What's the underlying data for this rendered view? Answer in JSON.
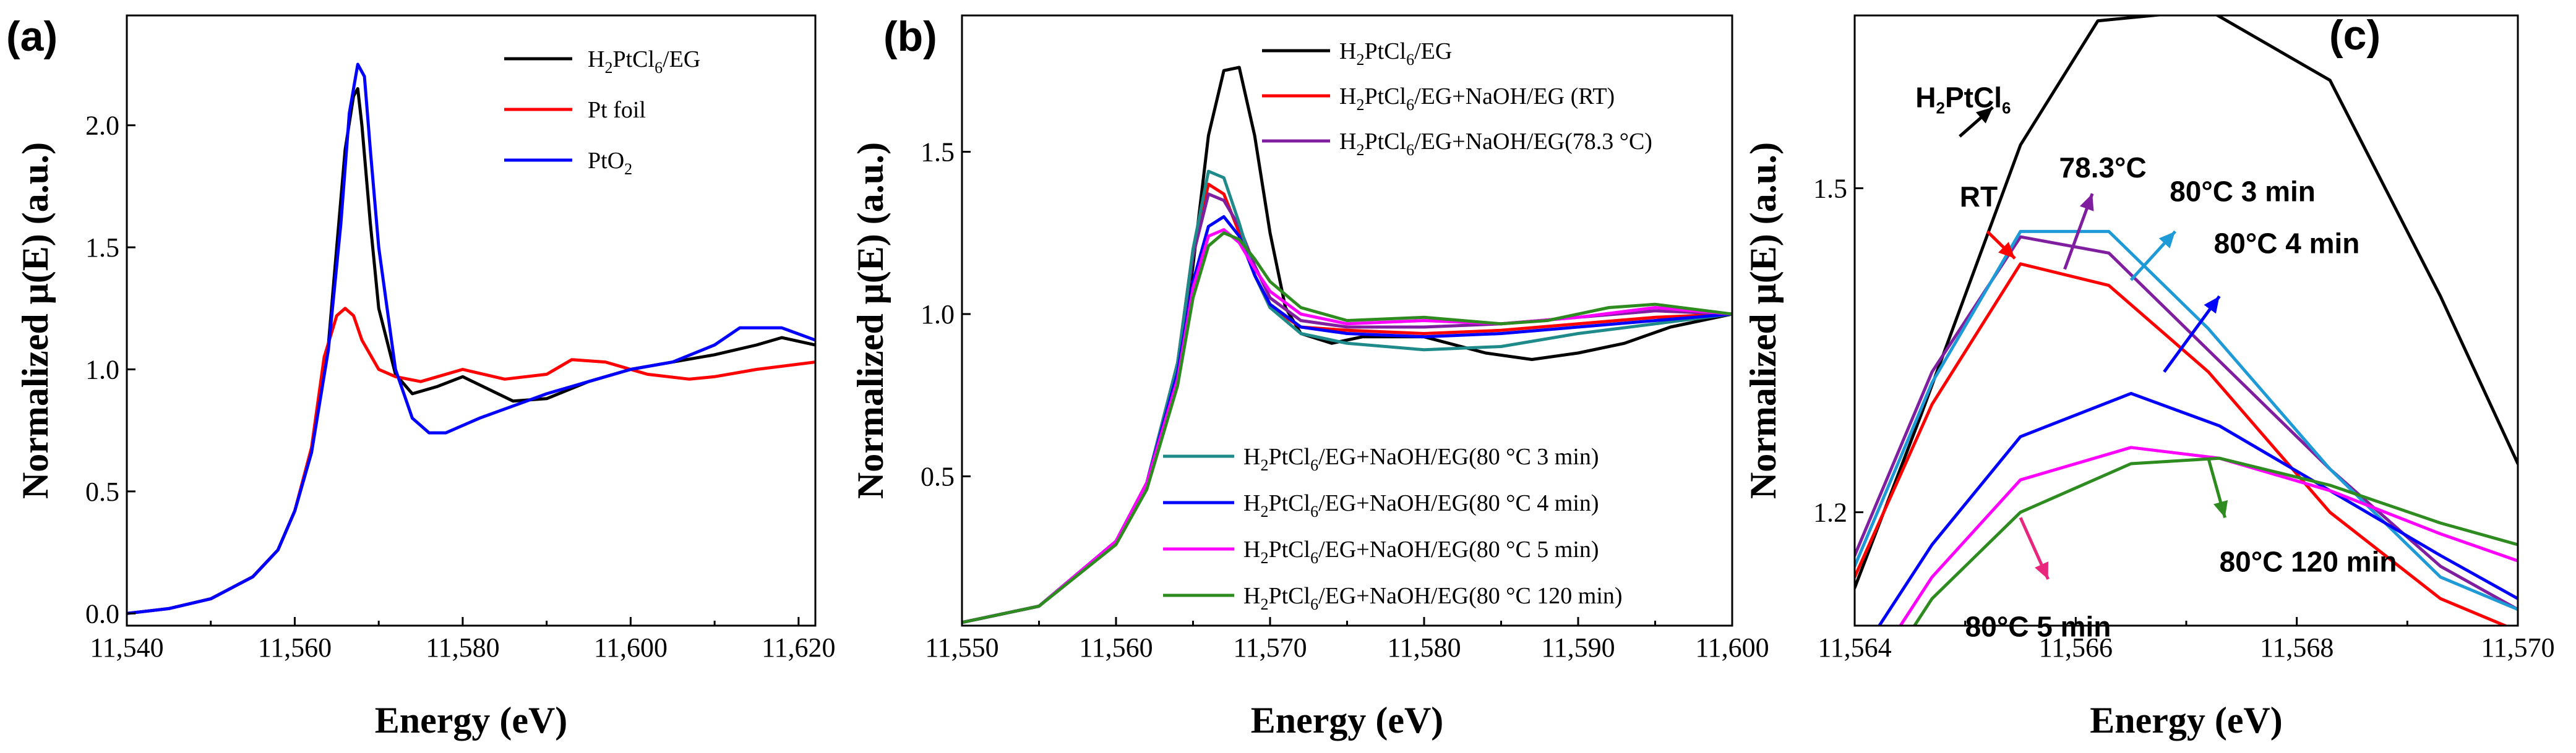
{
  "chart_data": [
    {
      "panel": "(a)",
      "type": "line",
      "title": "",
      "xlabel": "Energy (eV)",
      "ylabel": "Normalized μ(E) (a.u.)",
      "xlim": [
        11540,
        11622
      ],
      "ylim": [
        -0.05,
        2.45
      ],
      "xticks": [
        11540,
        11560,
        11580,
        11600,
        11620
      ],
      "xtick_labels": [
        "11,540",
        "11,560",
        "11,580",
        "11,600",
        "11,620"
      ],
      "yticks": [
        0.0,
        0.5,
        1.0,
        1.5,
        2.0
      ],
      "ytick_labels": [
        "0.0",
        "0.5",
        "1.0",
        "1.5",
        "2.0"
      ],
      "legend_position": "top-right",
      "series": [
        {
          "name": "H2PtCl6/EG",
          "legend_main": "H",
          "legend_parts": [
            "H",
            "2",
            "PtCl",
            "6",
            "/EG"
          ],
          "color": "#000000",
          "x": [
            11540,
            11545,
            11550,
            11555,
            11558,
            11560,
            11562,
            11564,
            11565,
            11566,
            11567,
            11567.5,
            11568,
            11569,
            11570,
            11572,
            11574,
            11577,
            11580,
            11583,
            11586,
            11590,
            11595,
            11600,
            11605,
            11610,
            11615,
            11618,
            11622
          ],
          "y": [
            0.0,
            0.02,
            0.06,
            0.15,
            0.26,
            0.42,
            0.66,
            1.1,
            1.5,
            1.9,
            2.12,
            2.15,
            2.0,
            1.6,
            1.25,
            0.98,
            0.9,
            0.93,
            0.97,
            0.92,
            0.87,
            0.88,
            0.95,
            1.0,
            1.03,
            1.06,
            1.1,
            1.13,
            1.1
          ]
        },
        {
          "name": "Pt foil",
          "legend_main": "Pt foil",
          "color": "#ff0000",
          "x": [
            11540,
            11545,
            11550,
            11555,
            11558,
            11560,
            11562,
            11563.5,
            11565,
            11566,
            11567,
            11568,
            11570,
            11572,
            11575,
            11580,
            11585,
            11590,
            11593,
            11597,
            11602,
            11607,
            11610,
            11615,
            11622
          ],
          "y": [
            0.0,
            0.02,
            0.06,
            0.15,
            0.26,
            0.42,
            0.68,
            1.05,
            1.22,
            1.25,
            1.22,
            1.12,
            1.0,
            0.97,
            0.95,
            1.0,
            0.96,
            0.98,
            1.04,
            1.03,
            0.98,
            0.96,
            0.97,
            1.0,
            1.03
          ]
        },
        {
          "name": "PtO2",
          "legend_main": "PtO",
          "legend_parts": [
            "PtO",
            "2"
          ],
          "color": "#0000ff",
          "x": [
            11540,
            11545,
            11550,
            11555,
            11558,
            11560,
            11562,
            11564,
            11565.5,
            11566.5,
            11567.5,
            11568.3,
            11569,
            11570,
            11572,
            11574,
            11576,
            11578,
            11582,
            11586,
            11590,
            11595,
            11600,
            11605,
            11610,
            11613,
            11618,
            11622
          ],
          "y": [
            0.0,
            0.02,
            0.06,
            0.15,
            0.26,
            0.42,
            0.66,
            1.08,
            1.6,
            2.05,
            2.25,
            2.2,
            1.9,
            1.5,
            1.0,
            0.8,
            0.74,
            0.74,
            0.8,
            0.85,
            0.9,
            0.95,
            1.0,
            1.03,
            1.1,
            1.17,
            1.17,
            1.12
          ]
        }
      ]
    },
    {
      "panel": "(b)",
      "type": "line",
      "title": "",
      "xlabel": "Energy (eV)",
      "ylabel": "Normalized μ(E) (a.u.)",
      "xlim": [
        11550,
        11600
      ],
      "ylim": [
        0.04,
        1.92
      ],
      "xticks": [
        11550,
        11560,
        11570,
        11580,
        11590,
        11600
      ],
      "xtick_labels": [
        "11,550",
        "11,560",
        "11,570",
        "11,580",
        "11,590",
        "11,600"
      ],
      "yticks": [
        0.5,
        1.0,
        1.5
      ],
      "ytick_labels": [
        "0.5",
        "1.0",
        "1.5"
      ],
      "legend_position": "top-right and bottom-right",
      "series": [
        {
          "name": "H2PtCl6/EG",
          "legend_parts": [
            "H",
            "2",
            "PtCl",
            "6",
            "/EG"
          ],
          "color": "#000000",
          "x": [
            11550,
            11555,
            11560,
            11562,
            11564,
            11565,
            11566,
            11567,
            11568,
            11569,
            11570,
            11571,
            11572,
            11574,
            11576,
            11580,
            11584,
            11587,
            11590,
            11593,
            11596,
            11600
          ],
          "y": [
            0.05,
            0.1,
            0.3,
            0.48,
            0.8,
            1.15,
            1.55,
            1.75,
            1.76,
            1.55,
            1.25,
            1.02,
            0.94,
            0.91,
            0.93,
            0.93,
            0.88,
            0.86,
            0.88,
            0.91,
            0.96,
            1.0
          ]
        },
        {
          "name": "H2PtCl6/EG+NaOH/EG (RT)",
          "legend_parts": [
            "H",
            "2",
            "PtCl",
            "6",
            "/EG+NaOH/EG (RT)"
          ],
          "color": "#ff0000",
          "x": [
            11550,
            11555,
            11560,
            11562,
            11564,
            11565,
            11566,
            11567,
            11568,
            11569,
            11570,
            11572,
            11575,
            11580,
            11585,
            11590,
            11595,
            11600
          ],
          "y": [
            0.05,
            0.1,
            0.3,
            0.48,
            0.85,
            1.2,
            1.4,
            1.37,
            1.25,
            1.12,
            1.02,
            0.96,
            0.95,
            0.94,
            0.95,
            0.97,
            0.99,
            1.0
          ]
        },
        {
          "name": "H2PtCl6/EG+NaOH/EG(78.3 °C)",
          "legend_parts": [
            "H",
            "2",
            "PtCl",
            "6",
            "/EG+NaOH/EG(78.3 °C)"
          ],
          "color": "#7f1f9f",
          "x": [
            11550,
            11555,
            11560,
            11562,
            11564,
            11565,
            11566,
            11567,
            11568,
            11569,
            11570,
            11572,
            11575,
            11580,
            11585,
            11590,
            11595,
            11600
          ],
          "y": [
            0.05,
            0.1,
            0.3,
            0.48,
            0.85,
            1.18,
            1.37,
            1.35,
            1.27,
            1.15,
            1.05,
            0.98,
            0.96,
            0.96,
            0.97,
            0.99,
            1.01,
            1.0
          ]
        },
        {
          "name": "H2PtCl6/EG+NaOH/EG(80 °C 3 min)",
          "legend_parts": [
            "H",
            "2",
            "PtCl",
            "6",
            "/EG+NaOH/EG(80 °C 3 min)"
          ],
          "color": "#1f8a8a",
          "x": [
            11550,
            11555,
            11560,
            11562,
            11564,
            11565,
            11566,
            11567,
            11568,
            11569,
            11570,
            11572,
            11575,
            11580,
            11585,
            11590,
            11595,
            11600
          ],
          "y": [
            0.05,
            0.1,
            0.3,
            0.48,
            0.85,
            1.2,
            1.44,
            1.42,
            1.28,
            1.12,
            1.02,
            0.94,
            0.91,
            0.89,
            0.9,
            0.94,
            0.97,
            1.0
          ]
        },
        {
          "name": "H2PtCl6/EG+NaOH/EG(80 °C 4 min)",
          "legend_parts": [
            "H",
            "2",
            "PtCl",
            "6",
            "/EG+NaOH/EG(80 °C 4 min)"
          ],
          "color": "#0000ff",
          "x": [
            11550,
            11555,
            11560,
            11562,
            11564,
            11565,
            11566,
            11567,
            11568,
            11569,
            11570,
            11572,
            11575,
            11580,
            11585,
            11590,
            11595,
            11600
          ],
          "y": [
            0.05,
            0.1,
            0.3,
            0.48,
            0.82,
            1.1,
            1.27,
            1.3,
            1.24,
            1.12,
            1.03,
            0.96,
            0.94,
            0.93,
            0.94,
            0.96,
            0.98,
            1.0
          ]
        },
        {
          "name": "H2PtCl6/EG+NaOH/EG(80 °C 5 min)",
          "legend_parts": [
            "H",
            "2",
            "PtCl",
            "6",
            "/EG+NaOH/EG(80 °C 5 min)"
          ],
          "color": "#ff00ff",
          "x": [
            11550,
            11555,
            11560,
            11562,
            11564,
            11565,
            11566,
            11567,
            11568,
            11569,
            11570,
            11572,
            11575,
            11580,
            11585,
            11590,
            11595,
            11600
          ],
          "y": [
            0.05,
            0.1,
            0.3,
            0.48,
            0.8,
            1.08,
            1.24,
            1.26,
            1.22,
            1.14,
            1.07,
            1.0,
            0.97,
            0.98,
            0.97,
            0.99,
            1.02,
            1.0
          ]
        },
        {
          "name": "H2PtCl6/EG+NaOH/EG(80 °C 120 min)",
          "legend_parts": [
            "H",
            "2",
            "PtCl",
            "6",
            "/EG+NaOH/EG(80 °C 120 min)"
          ],
          "color": "#2e8b20",
          "x": [
            11550,
            11555,
            11560,
            11562,
            11564,
            11565,
            11566,
            11567,
            11568,
            11569,
            11570,
            11572,
            11575,
            11580,
            11585,
            11588,
            11592,
            11595,
            11600
          ],
          "y": [
            0.05,
            0.1,
            0.29,
            0.46,
            0.78,
            1.05,
            1.21,
            1.25,
            1.23,
            1.17,
            1.1,
            1.02,
            0.98,
            0.99,
            0.97,
            0.98,
            1.02,
            1.03,
            1.0
          ]
        }
      ]
    },
    {
      "panel": "(c)",
      "type": "line",
      "title": "",
      "xlabel": "Energy (eV)",
      "ylabel": "Normalized μ(E) (a.u.)",
      "xlim": [
        11564,
        11570
      ],
      "ylim": [
        1.095,
        1.66
      ],
      "xticks": [
        11564,
        11566,
        11568,
        11570
      ],
      "xtick_labels": [
        "11,564",
        "11,566",
        "11,568",
        "11,570"
      ],
      "yticks": [
        1.2,
        1.5
      ],
      "ytick_labels": [
        "1.2",
        "1.5"
      ],
      "annotations": [
        {
          "label": "H2PtCl6",
          "parts": [
            "H",
            "2",
            "PtCl",
            "6"
          ],
          "color": "#000000",
          "text_at": [
            11564.55,
            1.575
          ],
          "arrow_from": [
            11564.95,
            1.548
          ],
          "arrow_to": [
            11565.25,
            1.575
          ]
        },
        {
          "label": "RT",
          "parts": [
            "RT"
          ],
          "color": "#ff0000",
          "text_at": [
            11564.95,
            1.483
          ],
          "arrow_from": [
            11565.2,
            1.46
          ],
          "arrow_to": [
            11565.45,
            1.435
          ]
        },
        {
          "label": "78.3°C",
          "parts": [
            "78.3°C"
          ],
          "color": "#7f1f9f",
          "text_at": [
            11565.85,
            1.51
          ],
          "arrow_from": [
            11565.9,
            1.425
          ],
          "arrow_to": [
            11566.15,
            1.495
          ]
        },
        {
          "label": "80°C 3 min",
          "parts": [
            "80°C 3 min"
          ],
          "color": "#1e9ad6",
          "text_at": [
            11566.85,
            1.488
          ],
          "arrow_from": [
            11566.5,
            1.415
          ],
          "arrow_to": [
            11566.9,
            1.46
          ]
        },
        {
          "label": "80°C 4 min",
          "parts": [
            "80°C 4 min"
          ],
          "color": "#0000ff",
          "text_at": [
            11567.25,
            1.44
          ],
          "arrow_from": [
            11566.8,
            1.33
          ],
          "arrow_to": [
            11567.3,
            1.4
          ]
        },
        {
          "label": "80°C 120 min",
          "parts": [
            "80°C 120 min"
          ],
          "color": "#2e8b20",
          "text_at": [
            11567.3,
            1.145
          ],
          "arrow_from": [
            11567.2,
            1.25
          ],
          "arrow_to": [
            11567.35,
            1.195
          ]
        },
        {
          "label": "80°C 5 min",
          "parts": [
            "80°C 5 min"
          ],
          "color": "#e8267d",
          "text_at": [
            11565.0,
            1.085
          ],
          "arrow_from": [
            11565.5,
            1.195
          ],
          "arrow_to": [
            11565.75,
            1.138
          ]
        }
      ],
      "series": [
        {
          "name": "H2PtCl6/EG",
          "color": "#000000",
          "x": [
            11564,
            11564.6,
            11565.5,
            11566.2,
            11567.2,
            11568.3,
            11569.3,
            11570
          ],
          "y": [
            1.13,
            1.29,
            1.54,
            1.655,
            1.665,
            1.6,
            1.4,
            1.245
          ]
        },
        {
          "name": "RT",
          "color": "#ff0000",
          "x": [
            11564,
            11564.7,
            11565.5,
            11566.3,
            11567.2,
            11568.3,
            11569.3,
            11570
          ],
          "y": [
            1.14,
            1.3,
            1.43,
            1.41,
            1.33,
            1.2,
            1.12,
            1.09
          ]
        },
        {
          "name": "78.3 °C",
          "color": "#7f1f9f",
          "x": [
            11564,
            11564.7,
            11565.5,
            11566.3,
            11567.2,
            11568.3,
            11569.3,
            11570
          ],
          "y": [
            1.16,
            1.33,
            1.455,
            1.44,
            1.35,
            1.24,
            1.15,
            1.11
          ]
        },
        {
          "name": "80 °C 3 min",
          "color": "#1e9ad6",
          "x": [
            11564,
            11564.7,
            11565.5,
            11566.3,
            11567.2,
            11568.3,
            11569.3,
            11570
          ],
          "y": [
            1.15,
            1.32,
            1.46,
            1.46,
            1.37,
            1.24,
            1.14,
            1.11
          ]
        },
        {
          "name": "80 °C 4 min",
          "color": "#0000ff",
          "x": [
            11564,
            11564.7,
            11565.5,
            11566.5,
            11567.3,
            11568.3,
            11569.3,
            11570
          ],
          "y": [
            1.06,
            1.17,
            1.27,
            1.31,
            1.28,
            1.22,
            1.16,
            1.12
          ]
        },
        {
          "name": "80 °C 5 min",
          "color": "#ff00ff",
          "x": [
            11564,
            11564.7,
            11565.5,
            11566.5,
            11567.3,
            11568.3,
            11569.3,
            11570
          ],
          "y": [
            1.03,
            1.14,
            1.23,
            1.26,
            1.25,
            1.22,
            1.18,
            1.155
          ]
        },
        {
          "name": "80 °C 120 min",
          "color": "#2e8b20",
          "x": [
            11564,
            11564.7,
            11565.5,
            11566.5,
            11567.3,
            11568.3,
            11569.3,
            11570
          ],
          "y": [
            1.01,
            1.12,
            1.2,
            1.245,
            1.25,
            1.225,
            1.19,
            1.17
          ]
        }
      ]
    }
  ]
}
